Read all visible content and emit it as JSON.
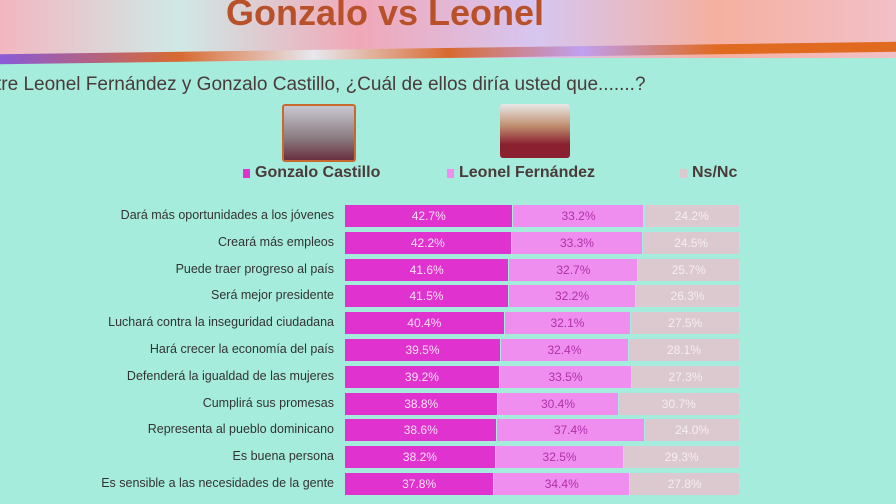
{
  "header": {
    "title": "Gonzalo vs Leonel",
    "question": "tre Leonel Fernández y Gonzalo Castillo, ¿Cuál de ellos diría usted que.......?"
  },
  "colors": {
    "gonzalo": "#e032cf",
    "leonel": "#f08ef0",
    "nsnc": "#dcc9cf",
    "background": "#a6ecdc"
  },
  "chart_data": {
    "type": "bar",
    "orientation": "horizontal",
    "stacked": true,
    "unit": "%",
    "legend_position": "top",
    "categories": [
      "Dará más oportunidades a los jóvenes",
      "Creará más empleos",
      "Puede traer progreso al país",
      "Será mejor presidente",
      "Luchará contra la inseguridad ciudadana",
      "Hará crecer la economía del país",
      "Defenderá la igualdad de las mujeres",
      "Cumplirá sus promesas",
      "Representa al pueblo dominicano",
      "Es buena persona",
      "Es sensible a las necesidades de la gente"
    ],
    "series": [
      {
        "name": "Gonzalo Castillo",
        "values": [
          42.7,
          42.2,
          41.6,
          41.5,
          40.4,
          39.5,
          39.2,
          38.8,
          38.6,
          38.2,
          37.8
        ]
      },
      {
        "name": "Leonel Fernández",
        "values": [
          33.2,
          33.3,
          32.7,
          32.2,
          32.1,
          32.4,
          33.5,
          30.4,
          37.4,
          32.5,
          34.4
        ]
      },
      {
        "name": "Ns/Nc",
        "values": [
          24.2,
          24.5,
          25.7,
          26.3,
          27.5,
          28.1,
          27.3,
          30.7,
          24.0,
          29.3,
          27.8
        ]
      }
    ]
  }
}
